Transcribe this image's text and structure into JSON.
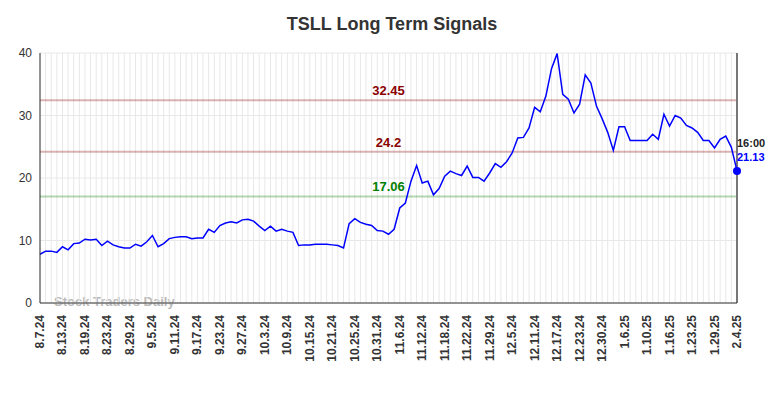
{
  "chart_data": {
    "type": "line",
    "title": "TSLL Long Term Signals",
    "watermark": "Stock Traders Daily",
    "end_label": "16:00",
    "categories": [
      "8.7.24",
      null,
      null,
      null,
      "8.13.24",
      null,
      null,
      null,
      "8.19.24",
      null,
      null,
      null,
      "8.23.24",
      null,
      null,
      null,
      "8.29.24",
      null,
      null,
      null,
      "9.5.24",
      null,
      null,
      null,
      "9.11.24",
      null,
      null,
      null,
      "9.17.24",
      null,
      null,
      null,
      "9.23.24",
      null,
      null,
      null,
      "9.27.24",
      null,
      null,
      null,
      "10.3.24",
      null,
      null,
      null,
      "10.9.24",
      null,
      null,
      null,
      "10.15.24",
      null,
      null,
      null,
      "10.21.24",
      null,
      null,
      null,
      "10.25.24",
      null,
      null,
      null,
      "10.31.24",
      null,
      null,
      null,
      "11.6.24",
      null,
      null,
      null,
      "11.12.24",
      null,
      null,
      null,
      "11.18.24",
      null,
      null,
      null,
      "11.22.24",
      null,
      null,
      null,
      "11.29.24",
      null,
      null,
      null,
      "12.5.24",
      null,
      null,
      null,
      "12.11.24",
      null,
      null,
      null,
      "12.17.24",
      null,
      null,
      null,
      "12.23.24",
      null,
      null,
      null,
      "12.30.24",
      null,
      null,
      null,
      "1.6.25",
      null,
      null,
      null,
      "1.10.25",
      null,
      null,
      null,
      "1.16.25",
      null,
      null,
      null,
      "1.23.25",
      null,
      null,
      null,
      "1.29.25",
      null,
      null,
      null,
      "2.4.25"
    ],
    "values": [
      7.8,
      8.3,
      8.3,
      8.1,
      9.0,
      8.5,
      9.5,
      9.6,
      10.2,
      10.1,
      10.2,
      9.2,
      9.9,
      9.3,
      9.0,
      8.8,
      8.8,
      9.4,
      9.1,
      9.8,
      10.8,
      9.0,
      9.5,
      10.3,
      10.5,
      10.6,
      10.6,
      10.3,
      10.4,
      10.4,
      11.8,
      11.3,
      12.4,
      12.8,
      13.0,
      12.8,
      13.3,
      13.4,
      13.1,
      12.3,
      11.6,
      12.3,
      11.5,
      11.8,
      11.5,
      11.3,
      9.2,
      9.3,
      9.3,
      9.4,
      9.4,
      9.4,
      9.3,
      9.2,
      8.8,
      12.7,
      13.5,
      12.9,
      12.6,
      12.4,
      11.6,
      11.5,
      11.0,
      11.8,
      15.2,
      16.0,
      19.5,
      22.0,
      19.2,
      19.5,
      17.3,
      18.3,
      20.3,
      21.1,
      20.7,
      20.4,
      21.9,
      20.1,
      20.1,
      19.5,
      20.8,
      22.3,
      21.7,
      22.6,
      24.0,
      26.4,
      26.5,
      28.0,
      31.3,
      30.6,
      33.1,
      37.5,
      39.9,
      33.4,
      32.6,
      30.4,
      31.8,
      36.5,
      35.2,
      31.5,
      29.5,
      27.3,
      24.4,
      28.2,
      28.2,
      26.0,
      26.0,
      26.0,
      26.0,
      27.0,
      26.2,
      30.2,
      28.3,
      30.0,
      29.6,
      28.4,
      28.0,
      27.3,
      26.0,
      26.0,
      24.8,
      26.2,
      26.7,
      24.9,
      21.13
    ],
    "color": "#0000ff",
    "ylim": [
      0,
      40
    ],
    "yticks": [
      0,
      10,
      20,
      30,
      40
    ],
    "grid": true,
    "annotations": [
      {
        "value": 32.45,
        "label": "32.45",
        "color": "#8b0000"
      },
      {
        "value": 24.2,
        "label": "24.2",
        "color": "#8b0000"
      },
      {
        "value": 17.06,
        "label": "17.06",
        "color": "#008000"
      }
    ]
  }
}
